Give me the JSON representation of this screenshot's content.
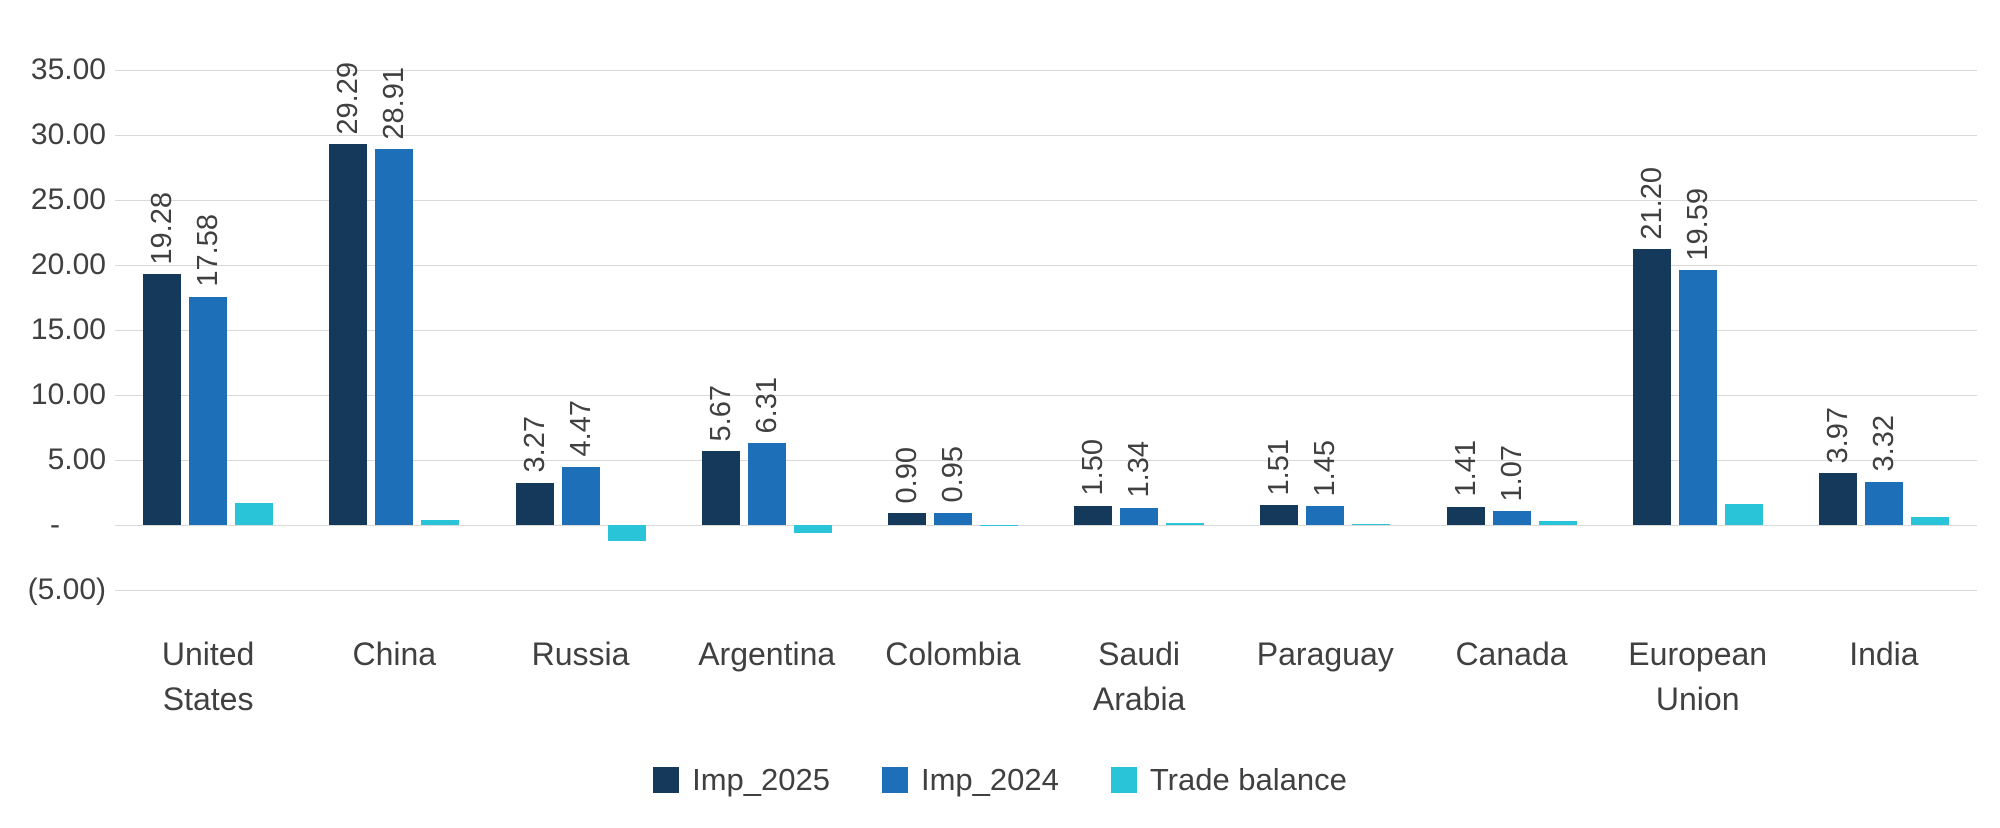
{
  "chart_data": {
    "type": "bar",
    "title": "",
    "categories": [
      "United States",
      "China",
      "Russia",
      "Argentina",
      "Colombia",
      "Saudi Arabia",
      "Paraguay",
      "Canada",
      "European Union",
      "India"
    ],
    "series": [
      {
        "name": "Imp_2025",
        "color": "#15395b",
        "show_labels": true,
        "values": [
          19.28,
          29.29,
          3.27,
          5.67,
          0.9,
          1.5,
          1.51,
          1.41,
          21.2,
          3.97
        ],
        "labels": [
          "19.28",
          "29.29",
          "3.27",
          "5.67",
          "0.90",
          "1.50",
          "1.51",
          "1.41",
          "21.20",
          "3.97"
        ]
      },
      {
        "name": "Imp_2024",
        "color": "#1d70b8",
        "show_labels": true,
        "values": [
          17.58,
          28.91,
          4.47,
          6.31,
          0.95,
          1.34,
          1.45,
          1.07,
          19.59,
          3.32
        ],
        "labels": [
          "17.58",
          "28.91",
          "4.47",
          "6.31",
          "0.95",
          "1.34",
          "1.45",
          "1.07",
          "19.59",
          "3.32"
        ]
      },
      {
        "name": "Trade balance",
        "color": "#29c4d8",
        "show_labels": false,
        "values": [
          1.7,
          0.38,
          -1.2,
          -0.64,
          -0.05,
          0.16,
          0.06,
          0.34,
          1.61,
          0.65
        ]
      }
    ],
    "y_ticks": [
      {
        "value": 35,
        "label": "35.00"
      },
      {
        "value": 30,
        "label": "30.00"
      },
      {
        "value": 25,
        "label": "25.00"
      },
      {
        "value": 20,
        "label": "20.00"
      },
      {
        "value": 15,
        "label": "15.00"
      },
      {
        "value": 10,
        "label": "10.00"
      },
      {
        "value": 5,
        "label": "5.00"
      },
      {
        "value": 0,
        "label": "-"
      },
      {
        "value": -5,
        "label": "(5.00)"
      }
    ],
    "ylim": [
      -5,
      35
    ],
    "grid": "horizontal",
    "legend_position": "bottom",
    "legend": [
      "Imp_2025",
      "Imp_2024",
      "Trade balance"
    ]
  },
  "colors": {
    "grid": "#d9d9d9",
    "text": "#404040",
    "background": "#ffffff",
    "series_imp_2025": "#15395b",
    "series_imp_2024": "#1d70b8",
    "series_trade_balance": "#29c4d8"
  }
}
